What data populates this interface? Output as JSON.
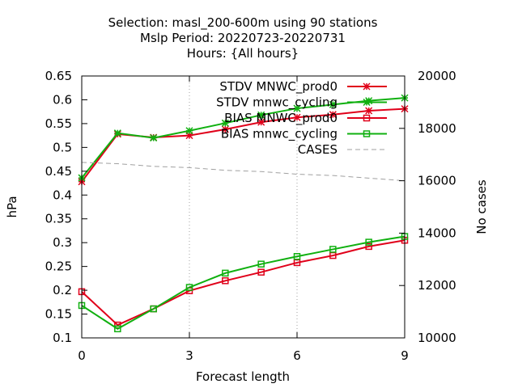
{
  "chart_data": {
    "type": "line",
    "title_lines": [
      "Selection: masl_200-600m using    90 stations",
      "Mslp   Period: 20220723-20220731",
      "Hours: {All hours}"
    ],
    "xlabel": "Forecast length",
    "ylabel": "hPa",
    "y2label": "No cases",
    "xlim": [
      0,
      9
    ],
    "ylim": [
      0.1,
      0.65
    ],
    "y2lim": [
      10000,
      20000
    ],
    "xticks": [
      0,
      3,
      6,
      9
    ],
    "yticks": [
      0.1,
      0.15,
      0.2,
      0.25,
      0.3,
      0.35,
      0.4,
      0.45,
      0.5,
      0.55,
      0.6,
      0.65
    ],
    "y2ticks": [
      10000,
      12000,
      14000,
      16000,
      18000,
      20000
    ],
    "grid": "x-only",
    "legend_position": "top-right",
    "x": [
      0,
      1,
      2,
      3,
      4,
      5,
      6,
      7,
      8,
      9
    ],
    "series": [
      {
        "name": "STDV MNWC_prod0",
        "axis": "y",
        "color": "#e0001a",
        "marker": "star",
        "values": [
          0.428,
          0.528,
          0.521,
          0.525,
          0.538,
          0.553,
          0.563,
          0.569,
          0.577,
          0.581
        ]
      },
      {
        "name": "STDV mnwc_cycling",
        "axis": "y",
        "color": "#10b010",
        "marker": "star",
        "values": [
          0.436,
          0.53,
          0.52,
          0.535,
          0.551,
          0.568,
          0.582,
          0.59,
          0.598,
          0.604
        ]
      },
      {
        "name": "BIAS MNWC_prod0",
        "axis": "y",
        "color": "#e0001a",
        "marker": "square",
        "values": [
          0.197,
          0.127,
          0.161,
          0.199,
          0.22,
          0.238,
          0.258,
          0.273,
          0.292,
          0.305
        ]
      },
      {
        "name": "BIAS mnwc_cycling",
        "axis": "y",
        "color": "#10b010",
        "marker": "square",
        "values": [
          0.168,
          0.119,
          0.161,
          0.206,
          0.236,
          0.255,
          0.271,
          0.286,
          0.301,
          0.313
        ]
      },
      {
        "name": "CASES",
        "axis": "y2",
        "color": "#a0a0a0",
        "marker": "none",
        "dashed": true,
        "values": [
          16700,
          16650,
          16550,
          16500,
          16400,
          16350,
          16250,
          16200,
          16100,
          16000
        ]
      }
    ]
  }
}
